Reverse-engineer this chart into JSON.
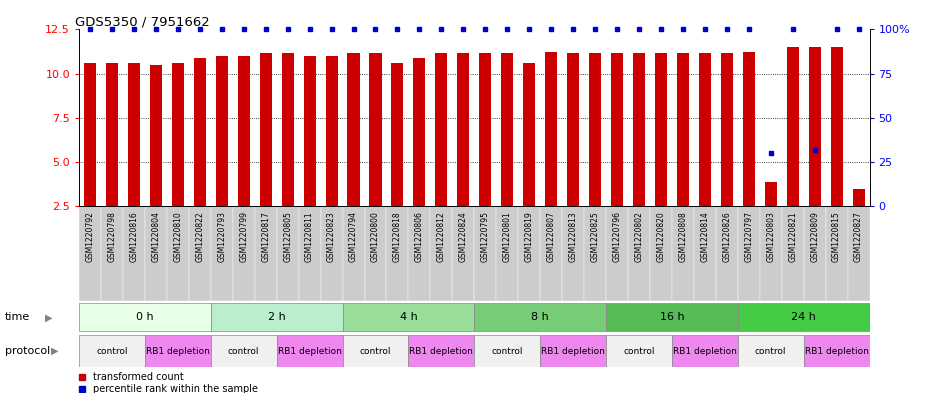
{
  "title": "GDS5350 / 7951662",
  "samples": [
    "GSM1220792",
    "GSM1220798",
    "GSM1220816",
    "GSM1220804",
    "GSM1220810",
    "GSM1220822",
    "GSM1220793",
    "GSM1220799",
    "GSM1220817",
    "GSM1220805",
    "GSM1220811",
    "GSM1220823",
    "GSM1220794",
    "GSM1220800",
    "GSM1220818",
    "GSM1220806",
    "GSM1220812",
    "GSM1220824",
    "GSM1220795",
    "GSM1220801",
    "GSM1220819",
    "GSM1220807",
    "GSM1220813",
    "GSM1220825",
    "GSM1220796",
    "GSM1220802",
    "GSM1220820",
    "GSM1220808",
    "GSM1220814",
    "GSM1220826",
    "GSM1220797",
    "GSM1220803",
    "GSM1220821",
    "GSM1220809",
    "GSM1220815",
    "GSM1220827"
  ],
  "transformed_counts": [
    10.6,
    10.6,
    10.6,
    10.5,
    10.6,
    10.9,
    11.0,
    11.0,
    11.15,
    11.15,
    11.0,
    11.0,
    11.15,
    11.15,
    10.6,
    10.9,
    11.15,
    11.15,
    11.15,
    11.15,
    10.6,
    11.2,
    11.15,
    11.15,
    11.15,
    11.15,
    11.15,
    11.15,
    11.15,
    11.15,
    11.2,
    3.9,
    11.5,
    11.5,
    11.5,
    3.5
  ],
  "percentile_ranks": [
    100,
    100,
    100,
    100,
    100,
    100,
    100,
    100,
    100,
    100,
    100,
    100,
    100,
    100,
    100,
    100,
    100,
    100,
    100,
    100,
    100,
    100,
    100,
    100,
    100,
    100,
    100,
    100,
    100,
    100,
    100,
    30,
    100,
    32,
    100,
    100
  ],
  "ylim_left": [
    2.5,
    12.5
  ],
  "ylim_right": [
    0,
    100
  ],
  "yticks_left": [
    2.5,
    5.0,
    7.5,
    10.0,
    12.5
  ],
  "yticks_right": [
    0,
    25,
    50,
    75,
    100
  ],
  "bar_color": "#cc0000",
  "dot_color": "#0000cc",
  "time_groups": [
    {
      "label": "0 h",
      "start": 0,
      "end": 6,
      "color": "#e8ffe8"
    },
    {
      "label": "2 h",
      "start": 6,
      "end": 12,
      "color": "#bbeecc"
    },
    {
      "label": "4 h",
      "start": 12,
      "end": 18,
      "color": "#99dd99"
    },
    {
      "label": "8 h",
      "start": 18,
      "end": 24,
      "color": "#77cc77"
    },
    {
      "label": "16 h",
      "start": 24,
      "end": 30,
      "color": "#55bb55"
    },
    {
      "label": "24 h",
      "start": 30,
      "end": 36,
      "color": "#44cc44"
    }
  ],
  "protocol_groups": [
    {
      "label": "control",
      "color": "#f0f0f0"
    },
    {
      "label": "RB1 depletion",
      "color": "#ee88ee"
    },
    {
      "label": "control",
      "color": "#f0f0f0"
    },
    {
      "label": "RB1 depletion",
      "color": "#ee88ee"
    },
    {
      "label": "control",
      "color": "#f0f0f0"
    },
    {
      "label": "RB1 depletion",
      "color": "#ee88ee"
    },
    {
      "label": "control",
      "color": "#f0f0f0"
    },
    {
      "label": "RB1 depletion",
      "color": "#ee88ee"
    },
    {
      "label": "control",
      "color": "#f0f0f0"
    },
    {
      "label": "RB1 depletion",
      "color": "#ee88ee"
    },
    {
      "label": "control",
      "color": "#f0f0f0"
    },
    {
      "label": "RB1 depletion",
      "color": "#ee88ee"
    }
  ],
  "legend_items": [
    {
      "label": "transformed count",
      "color": "#cc0000"
    },
    {
      "label": "percentile rank within the sample",
      "color": "#0000cc"
    }
  ],
  "xlabel_bg_color": "#cccccc",
  "xlabel_fontsize": 5.5,
  "row_label_fontsize": 8,
  "bar_width": 0.55
}
